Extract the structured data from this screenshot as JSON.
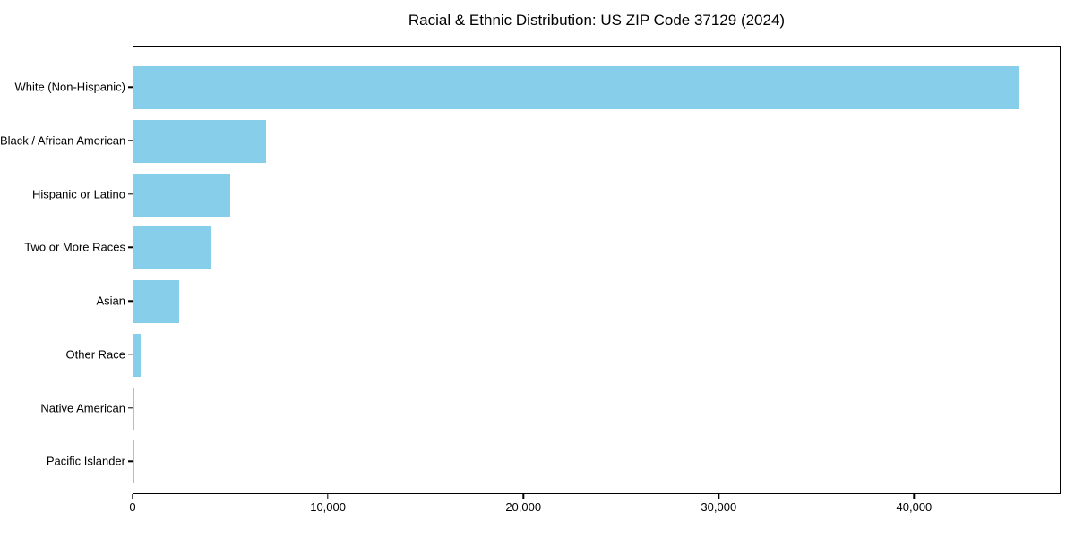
{
  "chart_data": {
    "type": "bar",
    "orientation": "horizontal",
    "title": "Racial & Ethnic Distribution: US ZIP Code 37129 (2024)",
    "categories": [
      "White (Non-Hispanic)",
      "Black / African American",
      "Hispanic or Latino",
      "Two or More Races",
      "Asian",
      "Other Race",
      "Native American",
      "Pacific Islander"
    ],
    "values": [
      45400,
      6800,
      4950,
      4000,
      2350,
      350,
      30,
      10
    ],
    "xlabel": "",
    "ylabel": "",
    "xlim": [
      0,
      47500
    ],
    "x_ticks": [
      0,
      10000,
      20000,
      30000,
      40000
    ],
    "x_tick_labels": [
      "0",
      "10,000",
      "20,000",
      "30,000",
      "40,000"
    ],
    "bar_color": "#87CEEB",
    "background_color": "#ffffff",
    "text_color": "#000000",
    "grid": false,
    "legend": null
  }
}
